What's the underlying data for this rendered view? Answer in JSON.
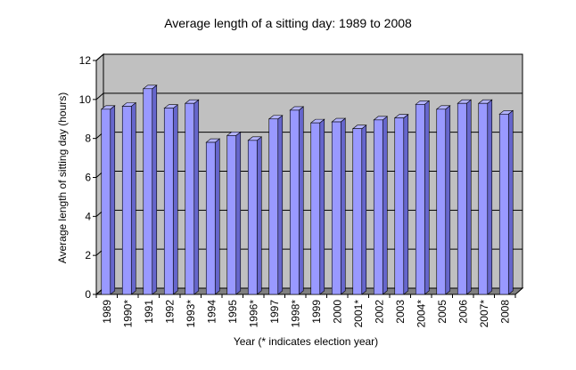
{
  "chart_data": {
    "type": "bar3d",
    "title": "Average length of a sitting day: 1989 to 2008",
    "x_label": "Year (* indicates election year)",
    "y_label": "Average length of sitting day (hours)",
    "categories": [
      "1989",
      "1990*",
      "1991",
      "1992",
      "1993*",
      "1994",
      "1995",
      "1996*",
      "1997",
      "1998*",
      "1999",
      "2000",
      "2001*",
      "2002",
      "2003",
      "2004*",
      "2005",
      "2006",
      "2007*",
      "2008"
    ],
    "values": [
      9.5,
      9.65,
      10.55,
      9.55,
      9.8,
      7.8,
      8.15,
      7.9,
      9.0,
      9.45,
      8.8,
      8.85,
      8.5,
      8.95,
      9.05,
      9.75,
      9.5,
      9.8,
      9.8,
      9.25
    ],
    "color": "#9999ff",
    "ylim": [
      0,
      12
    ],
    "yticks": [
      0,
      2,
      4,
      6,
      8,
      10,
      12
    ],
    "grid": true
  }
}
